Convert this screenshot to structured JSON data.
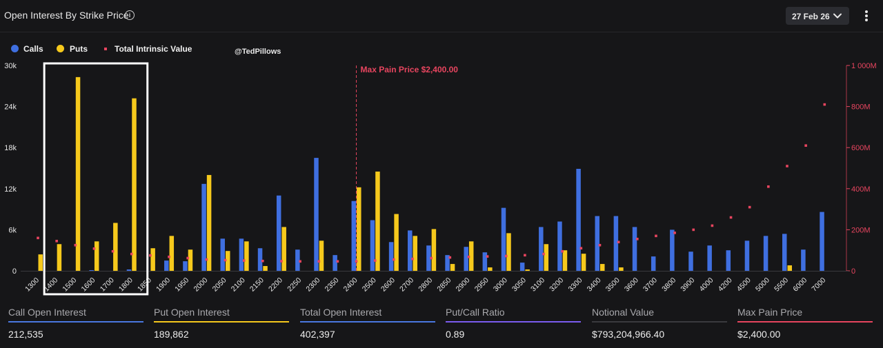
{
  "header": {
    "title": "Open Interest By Strike Price",
    "info_icon": "info-circle-icon",
    "date_label": "27 Feb 26",
    "chevron_icon": "chevron-down-icon",
    "more_icon": "vertical-ellipsis-icon"
  },
  "watermark": "@TedPillows",
  "colors": {
    "calls": "#3f6fe0",
    "puts": "#f6c91c",
    "intrinsic": "#e8455f",
    "max_pain": "#e8455f",
    "text": "#e6e6e6"
  },
  "chart_data": {
    "type": "bar",
    "legend": [
      {
        "name": "Calls",
        "kind": "dot"
      },
      {
        "name": "Puts",
        "kind": "dot"
      },
      {
        "name": "Total Intrinsic Value",
        "kind": "square"
      }
    ],
    "categories": [
      "1300",
      "1400",
      "1500",
      "1600",
      "1700",
      "1800",
      "1850",
      "1900",
      "1950",
      "2000",
      "2050",
      "2100",
      "2150",
      "2200",
      "2250",
      "2300",
      "2350",
      "2400",
      "2500",
      "2600",
      "2700",
      "2800",
      "2850",
      "2900",
      "2950",
      "3000",
      "3050",
      "3100",
      "3200",
      "3300",
      "3400",
      "3500",
      "3600",
      "3700",
      "3800",
      "3900",
      "4000",
      "4200",
      "4500",
      "5000",
      "5500",
      "6000",
      "7000"
    ],
    "series": [
      {
        "name": "Calls",
        "values": [
          0,
          0,
          0,
          100,
          0,
          200,
          0,
          1500,
          1400,
          12700,
          4700,
          4700,
          3300,
          11000,
          3100,
          16500,
          2300,
          10200,
          7400,
          4200,
          5900,
          3700,
          2300,
          3500,
          2700,
          9200,
          1200,
          6400,
          7200,
          14900,
          8000,
          8000,
          6400,
          2100,
          6000,
          2800,
          3700,
          3000,
          4400,
          5100,
          5400,
          3100,
          8600
        ]
      },
      {
        "name": "Puts",
        "values": [
          2400,
          3900,
          28300,
          4300,
          7000,
          25200,
          3300,
          5100,
          3100,
          14000,
          2900,
          4300,
          700,
          6400,
          0,
          4400,
          0,
          12200,
          14500,
          8300,
          5100,
          6100,
          1000,
          4300,
          500,
          5500,
          200,
          3900,
          3000,
          2500,
          1000,
          500,
          0,
          0,
          0,
          0,
          0,
          0,
          0,
          0,
          800,
          0,
          0
        ]
      },
      {
        "name": "Total Intrinsic Value",
        "unit": "M",
        "values": [
          160,
          145,
          125,
          108,
          95,
          82,
          75,
          68,
          62,
          55,
          52,
          50,
          48,
          47,
          46,
          46,
          46,
          46,
          50,
          55,
          58,
          62,
          65,
          68,
          70,
          72,
          76,
          82,
          95,
          110,
          125,
          140,
          155,
          170,
          185,
          200,
          220,
          260,
          310,
          410,
          510,
          610,
          810
        ]
      }
    ],
    "y_left": {
      "min": 0,
      "max": 30000,
      "ticks": [
        "0",
        "6k",
        "12k",
        "18k",
        "24k",
        "30k"
      ]
    },
    "y_right": {
      "min": 0,
      "max": 1000,
      "ticks": [
        "0",
        "200M",
        "400M",
        "600M",
        "800M",
        "1 000M"
      ]
    },
    "max_pain": {
      "strike": "2400",
      "label": "Max Pain Price $2,400.00"
    },
    "highlight_range": [
      "1400",
      "1800"
    ]
  },
  "stats": [
    {
      "label": "Call Open Interest",
      "value": "212,535",
      "color": "#4a78e0"
    },
    {
      "label": "Put Open Interest",
      "value": "189,862",
      "color": "#f6c91c"
    },
    {
      "label": "Total Open Interest",
      "value": "402,397",
      "color": "#4a78e0"
    },
    {
      "label": "Put/Call Ratio",
      "value": "0.89",
      "color": "#7b5cf0"
    },
    {
      "label": "Notional Value",
      "value": "$793,204,966.40",
      "color": "#3a3a3e"
    },
    {
      "label": "Max Pain Price",
      "value": "$2,400.00",
      "color": "#e8455f"
    }
  ]
}
